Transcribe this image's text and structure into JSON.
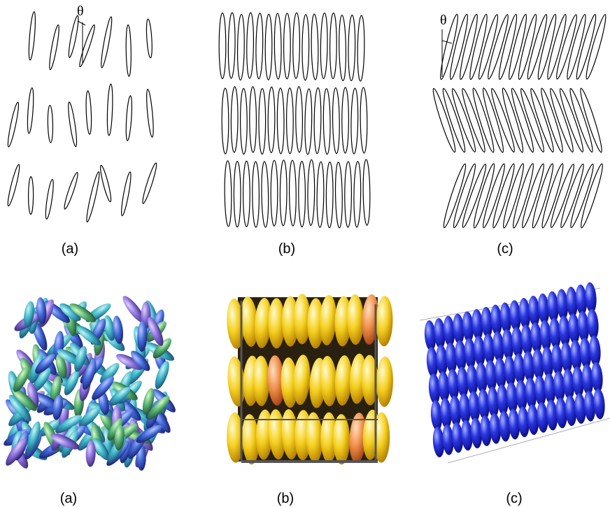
{
  "panels_top": [
    {
      "label": "(a)",
      "annotation": "θ"
    },
    {
      "label": "(b)"
    },
    {
      "label": "(c)",
      "annotation": "θ"
    }
  ],
  "panels_bottom": [
    {
      "label": "(a)"
    },
    {
      "label": "(b)"
    },
    {
      "label": "(c)"
    }
  ]
}
